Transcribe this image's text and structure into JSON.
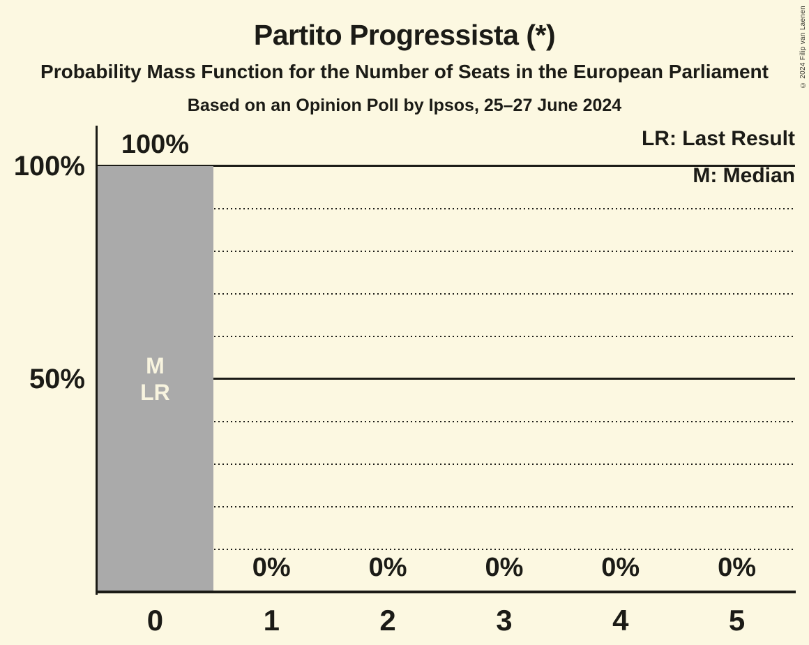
{
  "header": {
    "title": "Partito Progressista (*)",
    "subtitle": "Probability Mass Function for the Number of Seats in the European Parliament",
    "poll_info": "Based on an Opinion Poll by Ipsos, 25–27 June 2024"
  },
  "legend": {
    "last_result": "LR: Last Result",
    "median": "M: Median"
  },
  "copyright": "© 2024 Filip van Laenen",
  "colors": {
    "background": "#FCF8E1",
    "text": "#1B1B16",
    "bar": "#AAAAAA",
    "bar_annotation_text": "#F8F4DF"
  },
  "chart_data": {
    "type": "bar",
    "title": "Partito Progressista (*)",
    "subtitle": "Probability Mass Function for the Number of Seats in the European Parliament",
    "source_line": "Based on an Opinion Poll by Ipsos, 25–27 June 2024",
    "categories": [
      "0",
      "1",
      "2",
      "3",
      "4",
      "5"
    ],
    "values": [
      100,
      0,
      0,
      0,
      0,
      0
    ],
    "bar_value_labels": [
      "100%",
      "0%",
      "0%",
      "0%",
      "0%",
      "0%"
    ],
    "bar_annotations": [
      [
        "M",
        "LR"
      ],
      [],
      [],
      [],
      [],
      []
    ],
    "annotation_meanings": {
      "LR": "Last Result",
      "M": "Median"
    },
    "median_seats": 0,
    "last_result_seats": 0,
    "xlabel": "",
    "ylabel": "",
    "ylim": [
      0,
      100
    ],
    "yticks": [
      {
        "value": 100,
        "label": "100%"
      },
      {
        "value": 50,
        "label": "50%"
      }
    ],
    "solid_gridlines": [
      100,
      50
    ],
    "dotted_gridlines": [
      90,
      80,
      70,
      60,
      40,
      30,
      20,
      10
    ],
    "grid": "horizontal, dotted every 10%, solid at 50% and 100%",
    "legend_position": "top-right"
  }
}
